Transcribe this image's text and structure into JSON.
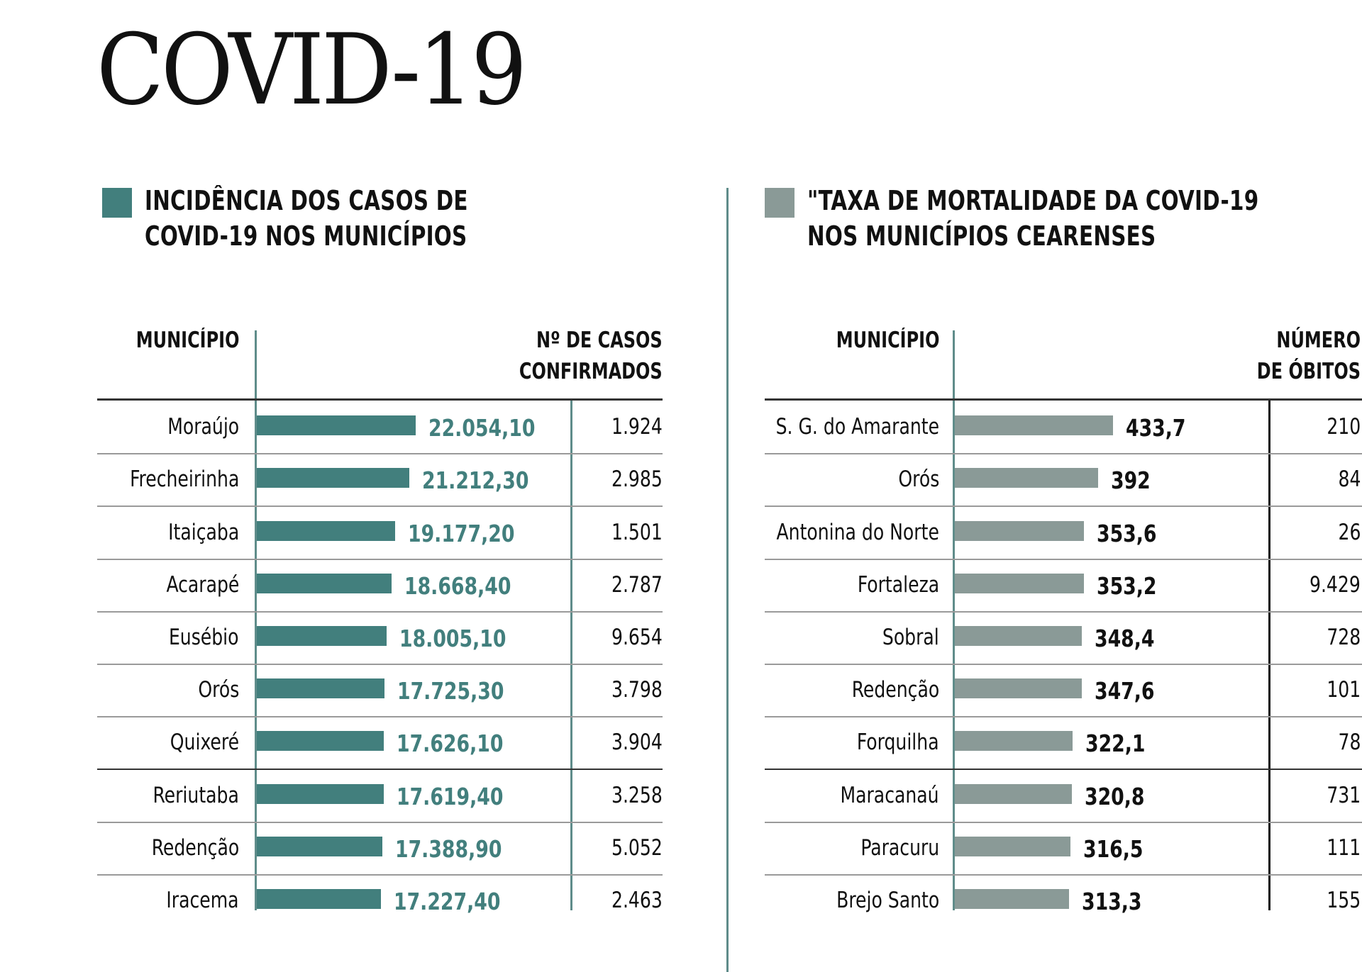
{
  "title": "COVID-19",
  "colors": {
    "teal": "#427f7d",
    "gray": "#8a9a97",
    "divider": "#5f8c8a"
  },
  "chart_data": [
    {
      "type": "bar",
      "orientation": "horizontal",
      "title": "INCIDÊNCIA DOS CASOS DE COVID-19 NOS MUNICÍPIOS",
      "title_lines": [
        "INCIDÊNCIA DOS CASOS DE",
        "COVID-19 NOS MUNICÍPIOS"
      ],
      "col_head_left": "MUNICÍPIO",
      "col_head_right_lines": [
        "Nº DE CASOS",
        "CONFIRMADOS"
      ],
      "categories": [
        "Moraújo",
        "Frecheirinha",
        "Itaiçaba",
        "Acarapé",
        "Eusébio",
        "Orós",
        "Quixeré",
        "Reriutaba",
        "Redenção",
        "Iracema"
      ],
      "values": [
        22054.1,
        21212.3,
        19177.2,
        18668.4,
        18005.1,
        17725.3,
        17626.1,
        17619.4,
        17388.9,
        17227.4
      ],
      "value_labels": [
        "22.054,10",
        "21.212,30",
        "19.177,20",
        "18.668,40",
        "18.005,10",
        "17.725,30",
        "17.626,10",
        "17.619,40",
        "17.388,90",
        "17.227,40"
      ],
      "secondary_labels": [
        "1.924",
        "2.985",
        "1.501",
        "2.787",
        "9.654",
        "3.798",
        "3.904",
        "3.258",
        "5.052",
        "2.463"
      ],
      "secondary_values": [
        1924,
        2985,
        1501,
        2787,
        9654,
        3798,
        3904,
        3258,
        5052,
        2463
      ],
      "color": "#427f7d",
      "value_label_color": "#427f7d"
    },
    {
      "type": "bar",
      "orientation": "horizontal",
      "title": "\"TAXA DE MORTALIDADE DA COVID-19 NOS MUNICÍPIOS CEARENSES",
      "title_lines": [
        "\"TAXA DE MORTALIDADE DA COVID-19",
        "NOS MUNICÍPIOS CEARENSES"
      ],
      "col_head_left": "MUNICÍPIO",
      "col_head_right_lines": [
        "NÚMERO",
        "DE ÓBITOS"
      ],
      "categories": [
        "S. G. do Amarante",
        "Orós",
        "Antonina do Norte",
        "Fortaleza",
        "Sobral",
        "Redenção",
        "Forquilha",
        "Maracanaú",
        "Paracuru",
        "Brejo Santo"
      ],
      "values": [
        433.7,
        392,
        353.6,
        353.2,
        348.4,
        347.6,
        322.1,
        320.8,
        316.5,
        313.3
      ],
      "value_labels": [
        "433,7",
        "392",
        "353,6",
        "353,2",
        "348,4",
        "347,6",
        "322,1",
        "320,8",
        "316,5",
        "313,3"
      ],
      "secondary_labels": [
        "210",
        "84",
        "26",
        "9.429",
        "728",
        "101",
        "78",
        "731",
        "111",
        "155"
      ],
      "secondary_values": [
        210,
        84,
        26,
        9429,
        728,
        101,
        78,
        731,
        111,
        155
      ],
      "color": "#8a9a97",
      "value_label_color": "#111111"
    }
  ]
}
